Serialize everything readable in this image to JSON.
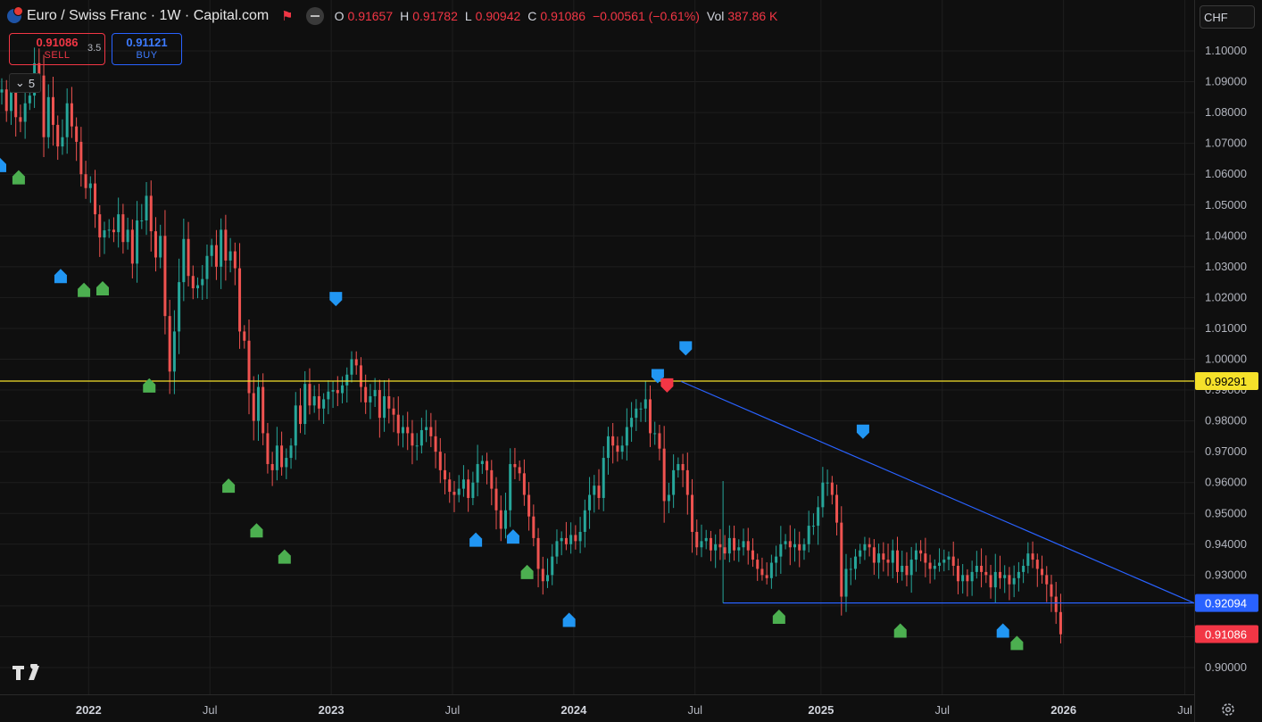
{
  "header": {
    "title": "Euro / Swiss Franc · 1W · Capital.com",
    "ohlc": [
      {
        "k": "O",
        "v": "0.91657"
      },
      {
        "k": "H",
        "v": "0.91782"
      },
      {
        "k": "L",
        "v": "0.90942"
      },
      {
        "k": "C",
        "v": "0.91086"
      },
      {
        "k": "",
        "v": "−0.00561 (−0.61%)"
      },
      {
        "k": "Vol",
        "v": "387.86 K"
      }
    ]
  },
  "trade": {
    "sell_price": "0.91086",
    "sell_label": "SELL",
    "buy_price": "0.91121",
    "buy_label": "BUY",
    "spread": "3.5"
  },
  "indicators_count": "5",
  "currency": "CHF",
  "colors": {
    "up": "#26a69a",
    "down": "#ef5350",
    "buy_arrow": "#2196f3",
    "green_arrow": "#4caf50",
    "sell_arrow": "#f23645",
    "horizontal_line": "#f5e12a",
    "trend_line": "#2962ff"
  },
  "chart_data": {
    "type": "candlestick",
    "interval": "1W",
    "x_ticks": [
      "2022",
      "Jul",
      "2023",
      "Jul",
      "2024",
      "Jul",
      "2025",
      "Jul",
      "2026",
      "Jul"
    ],
    "y_ticks": [
      "0.90000",
      "0.91000",
      "0.92000",
      "0.93000",
      "0.94000",
      "0.95000",
      "0.96000",
      "0.97000",
      "0.98000",
      "0.99000",
      "1.00000",
      "1.01000",
      "1.02000",
      "1.03000",
      "1.04000",
      "1.05000",
      "1.06000",
      "1.07000",
      "1.08000",
      "1.09000",
      "1.10000"
    ],
    "ylim": [
      0.896,
      1.11
    ],
    "xlim": [
      "2021-08-23",
      "2026-07-20"
    ],
    "price_labels": [
      {
        "value": 0.99291,
        "text": "0.99291",
        "style": "horizontal_line"
      },
      {
        "value": 0.92094,
        "text": "0.92094",
        "style": "trend_line"
      },
      {
        "value": 0.91086,
        "text": "0.91086",
        "style": "last_price"
      }
    ],
    "horizontal_line": 0.99291,
    "trend_line": {
      "from": [
        "2024-06-10",
        0.9928
      ],
      "to": [
        "2026-07-20",
        0.92094
      ]
    },
    "support_line": {
      "from": [
        "2024-08-12",
        0.92094
      ],
      "to": [
        "2026-07-20",
        0.92094
      ]
    },
    "closes": [
      1.0875,
      1.0805,
      1.087,
      1.0785,
      1.077,
      1.083,
      1.0855,
      1.096,
      1.092,
      1.072,
      1.085,
      1.076,
      1.069,
      1.072,
      1.083,
      1.0755,
      1.0705,
      1.06,
      1.0555,
      1.057,
      1.047,
      1.0395,
      1.0418,
      1.042,
      1.0412,
      1.047,
      1.038,
      1.042,
      1.031,
      1.045,
      1.045,
      1.053,
      1.0415,
      1.033,
      1.04,
      1.014,
      0.996,
      1.009,
      1.025,
      1.039,
      1.027,
      1.023,
      1.024,
      1.026,
      1.0335,
      1.037,
      1.03,
      1.042,
      1.032,
      1.035,
      1.0295,
      1.009,
      1.006,
      0.989,
      0.98,
      0.991,
      0.976,
      0.966,
      0.964,
      0.972,
      0.965,
      0.968,
      0.972,
      0.985,
      0.979,
      0.992,
      0.985,
      0.988,
      0.984,
      0.987,
      0.9895,
      0.99,
      0.989,
      0.9915,
      0.995,
      1.0,
      0.998,
      0.991,
      0.986,
      0.988,
      0.99,
      0.981,
      0.988,
      0.984,
      0.982,
      0.976,
      0.978,
      0.976,
      0.972,
      0.972,
      0.977,
      0.978,
      0.975,
      0.97,
      0.964,
      0.961,
      0.957,
      0.956,
      0.958,
      0.961,
      0.955,
      0.96,
      0.966,
      0.967,
      0.964,
      0.958,
      0.951,
      0.945,
      0.951,
      0.966,
      0.965,
      0.963,
      0.956,
      0.949,
      0.942,
      0.932,
      0.928,
      0.93,
      0.936,
      0.941,
      0.942,
      0.94,
      0.943,
      0.941,
      0.944,
      0.951,
      0.956,
      0.959,
      0.955,
      0.968,
      0.975,
      0.972,
      0.97,
      0.972,
      0.978,
      0.981,
      0.984,
      0.984,
      0.987,
      0.976,
      0.976,
      0.971,
      0.954,
      0.956,
      0.964,
      0.966,
      0.964,
      0.956,
      0.944,
      0.939,
      0.941,
      0.942,
      0.938,
      0.94,
      0.939,
      0.937,
      0.942,
      0.938,
      0.939,
      0.941,
      0.938,
      0.935,
      0.932,
      0.93,
      0.929,
      0.934,
      0.936,
      0.94,
      0.941,
      0.939,
      0.94,
      0.938,
      0.94,
      0.946,
      0.946,
      0.952,
      0.96,
      0.96,
      0.956,
      0.947,
      0.923,
      0.932,
      0.932,
      0.936,
      0.938,
      0.94,
      0.939,
      0.934,
      0.937,
      0.935,
      0.934,
      0.938,
      0.931,
      0.933,
      0.93,
      0.935,
      0.938,
      0.937,
      0.934,
      0.932,
      0.933,
      0.934,
      0.935,
      0.936,
      0.933,
      0.928,
      0.93,
      0.928,
      0.931,
      0.933,
      0.931,
      0.93,
      0.926,
      0.931,
      0.929,
      0.93,
      0.927,
      0.929,
      0.931,
      0.933,
      0.937,
      0.935,
      0.932,
      0.93,
      0.927,
      0.923,
      0.918,
      0.9108
    ]
  },
  "signals": [
    {
      "type": "buy",
      "date": "2021-08-23",
      "price": 1.063
    },
    {
      "type": "green",
      "date": "2021-09-20",
      "price": 1.059
    },
    {
      "type": "buy",
      "date": "2021-11-22",
      "price": 1.027
    },
    {
      "type": "green",
      "date": "2021-12-27",
      "price": 1.0225
    },
    {
      "type": "green",
      "date": "2022-01-24",
      "price": 1.023
    },
    {
      "type": "green",
      "date": "2022-04-04",
      "price": 0.9915
    },
    {
      "type": "green",
      "date": "2022-08-01",
      "price": 0.959
    },
    {
      "type": "green",
      "date": "2022-09-12",
      "price": 0.9445
    },
    {
      "type": "green",
      "date": "2022-10-24",
      "price": 0.936
    },
    {
      "type": "buy",
      "date": "2023-01-09",
      "price": 1.0195
    },
    {
      "type": "buy",
      "date": "2023-08-07",
      "price": 0.9415
    },
    {
      "type": "buy",
      "date": "2023-10-02",
      "price": 0.9425
    },
    {
      "type": "green",
      "date": "2023-10-23",
      "price": 0.931
    },
    {
      "type": "buy",
      "date": "2023-12-25",
      "price": 0.9155
    },
    {
      "type": "buy",
      "date": "2024-05-06",
      "price": 0.9945
    },
    {
      "type": "buy",
      "date": "2024-06-17",
      "price": 1.0035
    },
    {
      "type": "sell",
      "date": "2024-05-20",
      "price": 0.9915
    },
    {
      "type": "green",
      "date": "2024-11-04",
      "price": 0.9165
    },
    {
      "type": "buy",
      "date": "2025-03-10",
      "price": 0.9765
    },
    {
      "type": "green",
      "date": "2025-05-05",
      "price": 0.912
    },
    {
      "type": "buy",
      "date": "2025-10-06",
      "price": 0.912
    },
    {
      "type": "green",
      "date": "2025-10-27",
      "price": 0.908
    }
  ]
}
